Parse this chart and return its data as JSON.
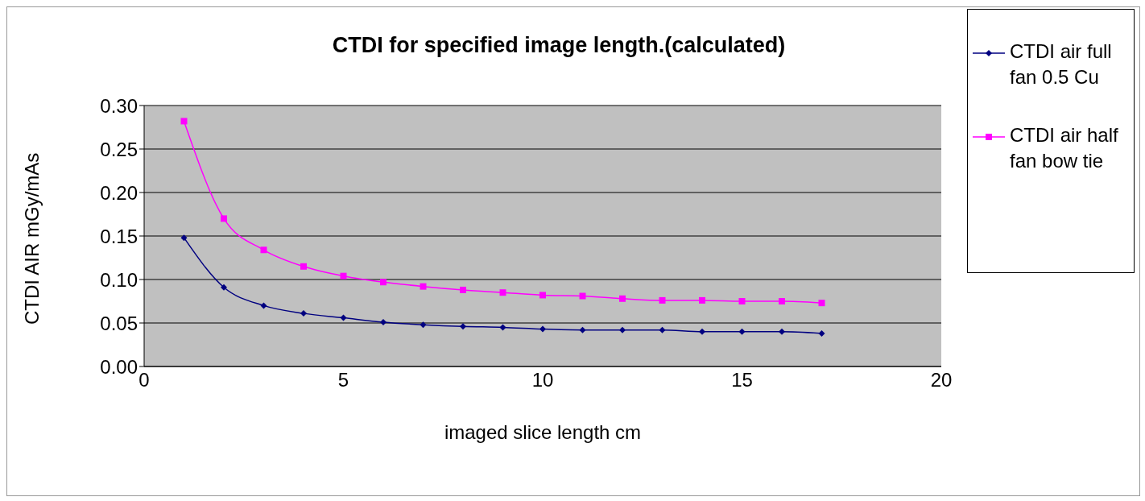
{
  "chart_data": {
    "type": "line",
    "title": "CTDI for specified image length.(calculated)",
    "xlabel": "imaged slice length cm",
    "ylabel": "CTDI AIR mGy/mAs",
    "x": [
      1,
      2,
      3,
      4,
      5,
      6,
      7,
      8,
      9,
      10,
      11,
      12,
      13,
      14,
      15,
      16,
      17
    ],
    "series": [
      {
        "name": "CTDI air full fan 0.5 Cu",
        "color": "#000080",
        "marker": "diamond",
        "values": [
          0.148,
          0.091,
          0.07,
          0.061,
          0.056,
          0.051,
          0.048,
          0.046,
          0.045,
          0.043,
          0.042,
          0.042,
          0.042,
          0.04,
          0.04,
          0.04,
          0.038
        ]
      },
      {
        "name": "CTDI air half fan bow tie",
        "color": "#ff00ff",
        "marker": "square",
        "values": [
          0.282,
          0.17,
          0.134,
          0.115,
          0.104,
          0.097,
          0.092,
          0.088,
          0.085,
          0.082,
          0.081,
          0.078,
          0.076,
          0.076,
          0.075,
          0.075,
          0.073
        ]
      }
    ],
    "xlim": [
      0,
      20
    ],
    "xticks": [
      0,
      5,
      10,
      15,
      20
    ],
    "ylim": [
      0,
      0.3
    ],
    "yticks": [
      {
        "value": 0,
        "label": "0.00"
      },
      {
        "value": 0.05,
        "label": "0.05"
      },
      {
        "value": 0.1,
        "label": "0.10"
      },
      {
        "value": 0.15,
        "label": "0.15"
      },
      {
        "value": 0.2,
        "label": "0.20"
      },
      {
        "value": 0.25,
        "label": "0.25"
      },
      {
        "value": 0.3,
        "label": "0.30"
      }
    ],
    "grid": "y",
    "legend": "right",
    "line_style": "solid"
  }
}
